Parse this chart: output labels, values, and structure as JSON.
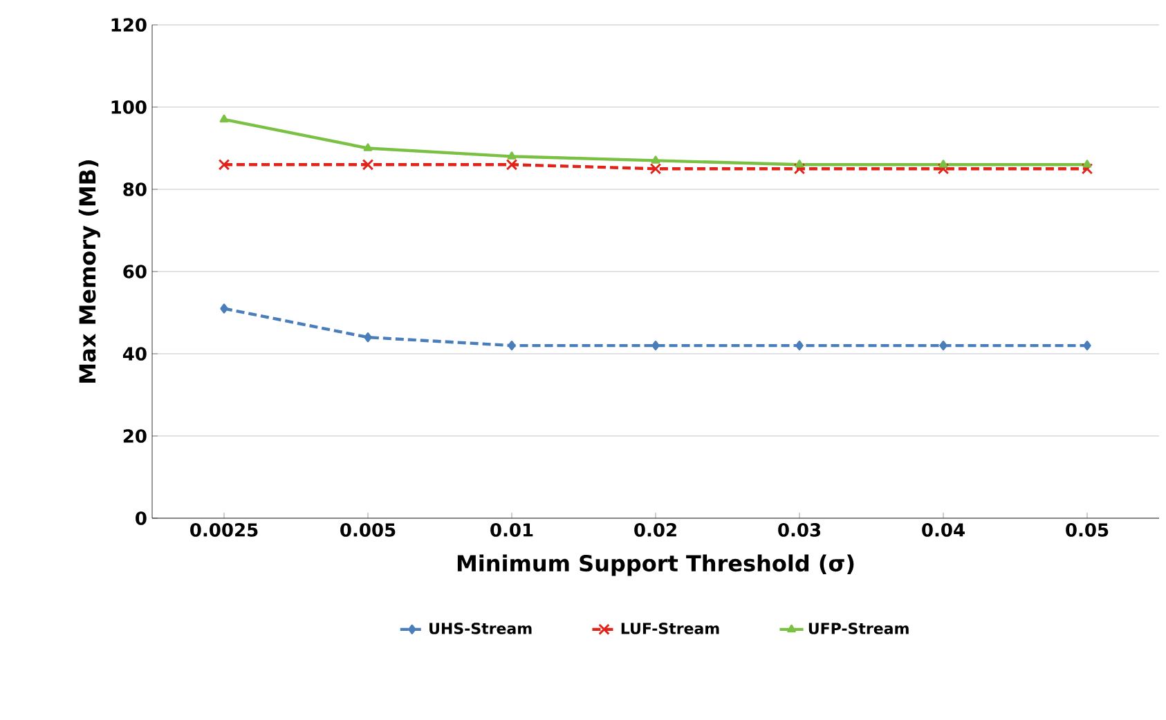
{
  "chart_data": {
    "type": "line",
    "xlabel": "Minimum Support Threshold (σ)",
    "ylabel": "Max Memory (MB)",
    "categories": [
      "0.0025",
      "0.005",
      "0.01",
      "0.02",
      "0.03",
      "0.04",
      "0.05"
    ],
    "series": [
      {
        "name": "UHS-Stream",
        "color": "#4a7ebb",
        "marker": "diamond",
        "line_style": "dashed",
        "values": [
          51,
          44,
          42,
          42,
          42,
          42,
          42
        ]
      },
      {
        "name": "LUF-Stream",
        "color": "#e2231a",
        "marker": "cross",
        "line_style": "dashed",
        "values": [
          86,
          86,
          86,
          85,
          85,
          85,
          85
        ]
      },
      {
        "name": "UFP-Stream",
        "color": "#7ac143",
        "marker": "triangle",
        "line_style": "solid",
        "values": [
          97,
          90,
          88,
          87,
          86,
          86,
          86
        ]
      }
    ],
    "ylim": [
      0,
      120
    ],
    "yticks": [
      0,
      20,
      40,
      60,
      80,
      100,
      120
    ],
    "grid": "y",
    "legend": "bottom"
  }
}
